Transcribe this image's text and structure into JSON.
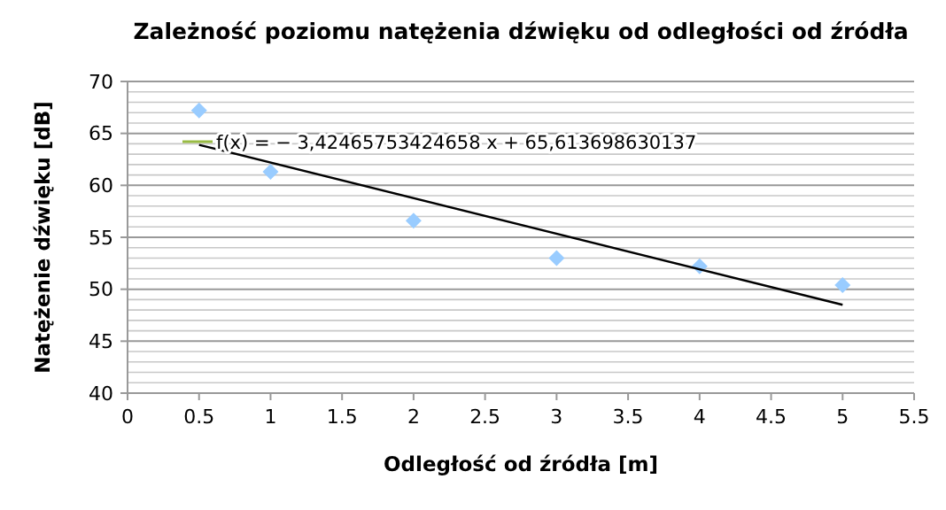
{
  "chart_data": {
    "type": "scatter",
    "title": "Zależność poziomu natężenia dźwięku od odległości od źródła",
    "xlabel": "Odległość od źródła [m]",
    "ylabel": "Natężenie dźwięku [dB]",
    "annotations": [
      "f(x) = − 3,42465753424658 x + 65,613698630137"
    ],
    "series": [
      {
        "color": "#99ccff",
        "x": [
          0.5,
          1,
          2,
          3,
          4,
          5
        ],
        "values": [
          67.2,
          61.3,
          56.6,
          53.0,
          52.2,
          50.4
        ]
      },
      {
        "type": "line",
        "marker": "none",
        "color": "#000000",
        "x": [
          0.5,
          5
        ],
        "values": [
          63.9,
          48.5
        ]
      }
    ],
    "marker": "diamond",
    "grid": "y",
    "xlim": [
      0,
      5.5
    ],
    "xticks": [
      0,
      0.5,
      1,
      1.5,
      2,
      2.5,
      3,
      3.5,
      4,
      4.5,
      5,
      5.5
    ],
    "ylim": [
      40,
      70
    ],
    "yticks": [
      40,
      {
        "value": 41,
        "label": null
      },
      {
        "value": 42,
        "label": null
      },
      {
        "value": 43,
        "label": null
      },
      {
        "value": 44,
        "label": null
      },
      45,
      {
        "value": 46,
        "label": null
      },
      {
        "value": 47,
        "label": null
      },
      {
        "value": 48,
        "label": null
      },
      {
        "value": 49,
        "label": null
      },
      50,
      {
        "value": 51,
        "label": null
      },
      {
        "value": 52,
        "label": null
      },
      {
        "value": 53,
        "label": null
      },
      {
        "value": 54,
        "label": null
      },
      55,
      {
        "value": 56,
        "label": null
      },
      {
        "value": 57,
        "label": null
      },
      {
        "value": 58,
        "label": null
      },
      {
        "value": 59,
        "label": null
      },
      60,
      {
        "value": 61,
        "label": null
      },
      {
        "value": 62,
        "label": null
      },
      {
        "value": 63,
        "label": null
      },
      {
        "value": 64,
        "label": null
      },
      65,
      {
        "value": 66,
        "label": null
      },
      {
        "value": 67,
        "label": null
      },
      {
        "value": 68,
        "label": null
      },
      {
        "value": 69,
        "label": null
      },
      70
    ]
  }
}
